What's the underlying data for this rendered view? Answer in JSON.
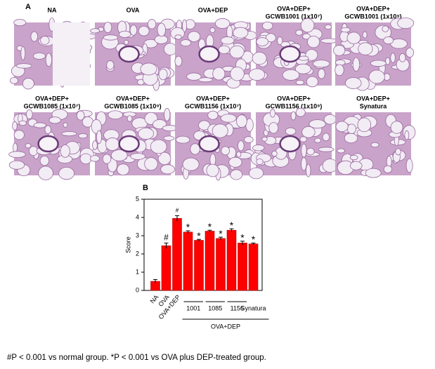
{
  "panel_a": {
    "label": "A",
    "images": [
      {
        "title": [
          "NA"
        ]
      },
      {
        "title": [
          "OVA"
        ]
      },
      {
        "title": [
          "OVA+DEP"
        ]
      },
      {
        "title": [
          "OVA+DEP+",
          "GCWB1001 (1x10⁷)"
        ]
      },
      {
        "title": [
          "OVA+DEP+",
          "GCWB1001 (1x10⁹)"
        ]
      },
      {
        "title": [
          "OVA+DEP+",
          "GCWB1085 (1x10⁷)"
        ]
      },
      {
        "title": [
          "OVA+DEP+",
          "GCWB1085 (1x10⁹)"
        ]
      },
      {
        "title": [
          "OVA+DEP+",
          "GCWB1156 (1x10⁷)"
        ]
      },
      {
        "title": [
          "OVA+DEP+",
          "GCWB1156 (1x10⁹)"
        ]
      },
      {
        "title": [
          "OVA+DEP+",
          "Synatura"
        ]
      }
    ]
  },
  "chart_data": {
    "type": "bar",
    "panel_label": "B",
    "ylabel": "Score",
    "categories": [
      "NA",
      "OVA",
      "OVA+DEP",
      null,
      null,
      null,
      null,
      null,
      null,
      "Synatura"
    ],
    "values": [
      0.5,
      2.45,
      3.95,
      3.2,
      2.75,
      3.25,
      2.85,
      3.3,
      2.6,
      2.55
    ],
    "errors": [
      0.1,
      0.15,
      0.15,
      0.07,
      0.05,
      0.05,
      0.07,
      0.08,
      0.1,
      0.05
    ],
    "markers": [
      null,
      "#",
      "#",
      "*",
      "*",
      "*",
      "*",
      "*",
      "*",
      "*"
    ],
    "subgroups": [
      {
        "label": "1001",
        "members": [
          3,
          4
        ]
      },
      {
        "label": "1085",
        "members": [
          5,
          6
        ]
      },
      {
        "label": "1156",
        "members": [
          7,
          8
        ]
      }
    ],
    "group": {
      "label": "OVA+DEP",
      "members": [
        3,
        9
      ]
    },
    "color": "#ff0000",
    "ylim": [
      0,
      5
    ],
    "yticks": [
      0,
      1,
      2,
      3,
      4,
      5
    ]
  },
  "footnote": "#P < 0.001 vs normal group. *P < 0.001 vs OVA plus DEP-treated group."
}
